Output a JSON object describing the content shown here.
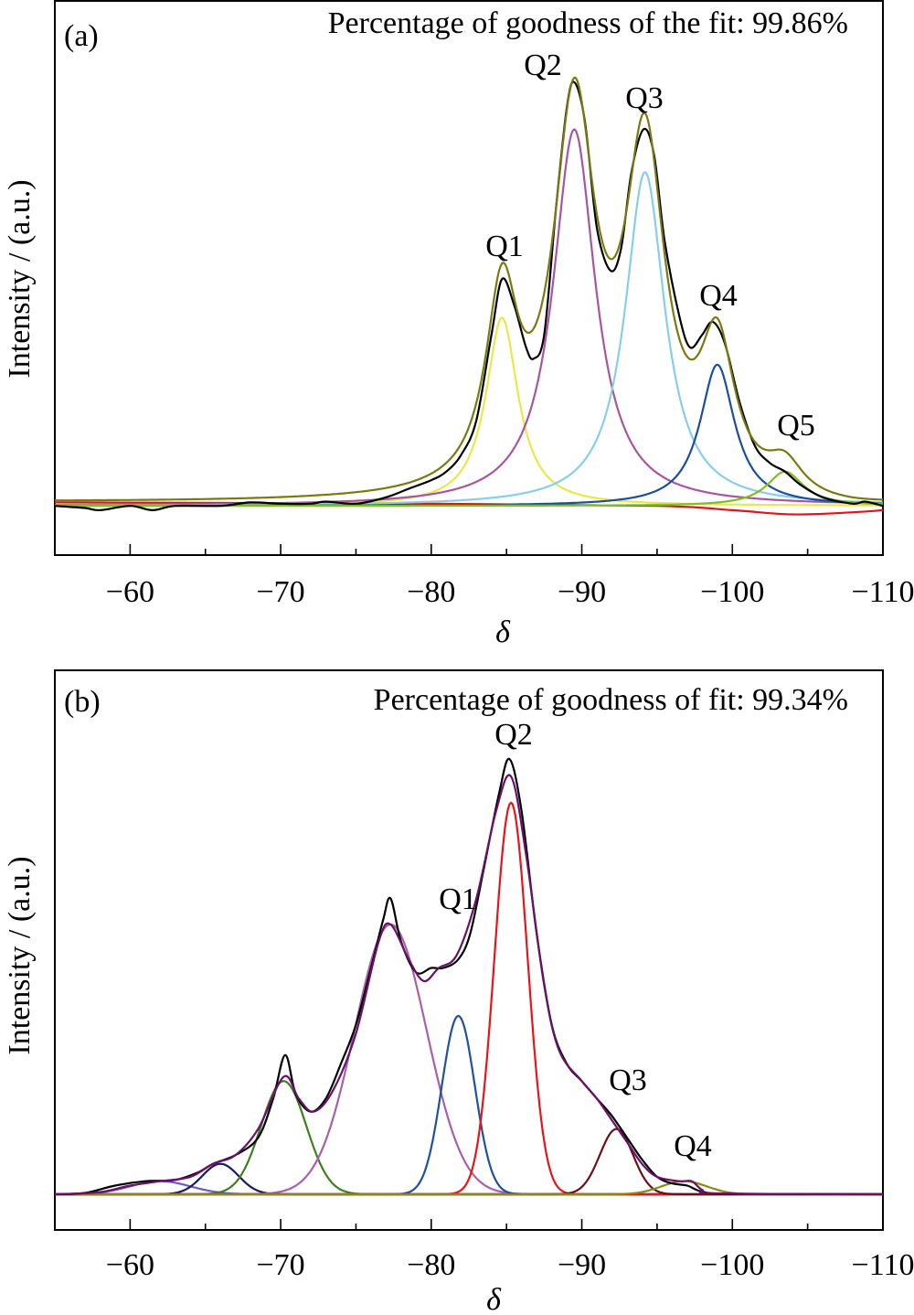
{
  "chart_data": [
    {
      "type": "line",
      "panel_label": "(a)",
      "title": "Percentage of goodness of the fit: 99.86%",
      "xlabel": "δ",
      "ylabel": "Intensity / (a.u.)",
      "xlim": [
        -55,
        -110
      ],
      "ylim": [
        -0.115,
        1.18
      ],
      "xticks": [
        -60,
        -70,
        -80,
        -90,
        -100,
        -110
      ],
      "xtick_labels": [
        "−60",
        "−70",
        "−80",
        "−90",
        "−100",
        "−110"
      ],
      "grid": false,
      "peak_shape": "lorentzian",
      "experimental": {
        "color": "#000000",
        "points": [
          [
            -55,
            0
          ],
          [
            -57,
            -0.005
          ],
          [
            -58,
            -0.01
          ],
          [
            -60,
            0
          ],
          [
            -61.5,
            -0.01
          ],
          [
            -63,
            0
          ],
          [
            -66,
            0
          ],
          [
            -68,
            0.008
          ],
          [
            -70,
            0.005
          ],
          [
            -72,
            0.005
          ],
          [
            -73,
            0.01
          ],
          [
            -75,
            0.005
          ],
          [
            -77,
            0.02
          ],
          [
            -78.5,
            0.04
          ],
          [
            -80,
            0.06
          ],
          [
            -81,
            0.08
          ],
          [
            -82,
            0.12
          ],
          [
            -83,
            0.2
          ],
          [
            -84,
            0.4
          ],
          [
            -84.7,
            0.53
          ],
          [
            -85.5,
            0.47
          ],
          [
            -86.3,
            0.37
          ],
          [
            -86.8,
            0.344
          ],
          [
            -87.5,
            0.4
          ],
          [
            -88.3,
            0.7
          ],
          [
            -89,
            0.93
          ],
          [
            -89.5,
            0.99
          ],
          [
            -90.2,
            0.9
          ],
          [
            -91,
            0.65
          ],
          [
            -91.9,
            0.55
          ],
          [
            -92.6,
            0.6
          ],
          [
            -93.3,
            0.78
          ],
          [
            -94.1,
            0.88
          ],
          [
            -94.8,
            0.82
          ],
          [
            -95.5,
            0.62
          ],
          [
            -96.5,
            0.44
          ],
          [
            -97.2,
            0.37
          ],
          [
            -98,
            0.4
          ],
          [
            -98.7,
            0.43
          ],
          [
            -99.5,
            0.38
          ],
          [
            -100.5,
            0.24
          ],
          [
            -101.5,
            0.14
          ],
          [
            -102.5,
            0.1
          ],
          [
            -103.5,
            0.08
          ],
          [
            -104.5,
            0.05
          ],
          [
            -106,
            0.02
          ],
          [
            -108,
            0.005
          ],
          [
            -108.8,
            0.01
          ],
          [
            -110,
            0
          ]
        ]
      },
      "fit_envelope_color": "#7a7a10",
      "baseline": {
        "color": "#e0141a",
        "points": [
          [
            -55,
            0.008
          ],
          [
            -80,
            0.005
          ],
          [
            -95,
            0
          ],
          [
            -100,
            -0.01
          ],
          [
            -104,
            -0.02
          ],
          [
            -108,
            -0.015
          ],
          [
            -110,
            -0.01
          ]
        ]
      },
      "components": [
        {
          "label": "Q1",
          "center": -84.7,
          "height": 0.44,
          "hwhm": 1.3,
          "color": "#e8e84a"
        },
        {
          "label": "Q2",
          "center": -89.5,
          "height": 0.88,
          "hwhm": 1.7,
          "color": "#a855a0"
        },
        {
          "label": "Q3",
          "center": -94.2,
          "height": 0.78,
          "hwhm": 1.6,
          "color": "#87ceeb"
        },
        {
          "label": "Q4",
          "center": -99.0,
          "height": 0.33,
          "hwhm": 1.4,
          "color": "#1a4f9f"
        },
        {
          "label": "Q5",
          "center": -103.5,
          "height": 0.08,
          "hwhm": 1.5,
          "color": "#7fbf1f"
        }
      ],
      "annotations": [
        "Q1",
        "Q2",
        "Q3",
        "Q4",
        "Q5"
      ]
    },
    {
      "type": "line",
      "panel_label": "(b)",
      "title": "Percentage of goodness of fit: 99.34%",
      "xlabel": "δ",
      "ylabel": "Intensity / (a.u.)",
      "xlim": [
        -55,
        -110
      ],
      "ylim": [
        -0.082,
        1.204
      ],
      "xticks": [
        -60,
        -70,
        -80,
        -90,
        -100,
        -110
      ],
      "xtick_labels": [
        "−60",
        "−70",
        "−80",
        "−90",
        "−100",
        "−110"
      ],
      "grid": false,
      "peak_shape": "gaussian",
      "experimental": {
        "color": "#000000",
        "points": [
          [
            -55,
            0
          ],
          [
            -57,
            0.003
          ],
          [
            -59,
            0.02
          ],
          [
            -61,
            0.03
          ],
          [
            -63,
            0.033
          ],
          [
            -64.5,
            0.05
          ],
          [
            -65.5,
            0.07
          ],
          [
            -67,
            0.09
          ],
          [
            -68.5,
            0.13
          ],
          [
            -69.5,
            0.22
          ],
          [
            -70.3,
            0.32
          ],
          [
            -71,
            0.23
          ],
          [
            -72,
            0.19
          ],
          [
            -73,
            0.22
          ],
          [
            -74,
            0.3
          ],
          [
            -75,
            0.39
          ],
          [
            -76,
            0.52
          ],
          [
            -76.8,
            0.63
          ],
          [
            -77.3,
            0.68
          ],
          [
            -78,
            0.58
          ],
          [
            -79,
            0.51
          ],
          [
            -80,
            0.52
          ],
          [
            -80.8,
            0.52
          ],
          [
            -81.8,
            0.54
          ],
          [
            -82.6,
            0.6
          ],
          [
            -83.5,
            0.75
          ],
          [
            -84.5,
            0.92
          ],
          [
            -85.2,
            1.0
          ],
          [
            -86,
            0.88
          ],
          [
            -87,
            0.6
          ],
          [
            -88,
            0.39
          ],
          [
            -89,
            0.3
          ],
          [
            -90,
            0.26
          ],
          [
            -91,
            0.22
          ],
          [
            -92,
            0.18
          ],
          [
            -93,
            0.13
          ],
          [
            -94,
            0.08
          ],
          [
            -95,
            0.04
          ],
          [
            -96,
            0.025
          ],
          [
            -97,
            0.02
          ],
          [
            -98,
            0.006
          ],
          [
            -100,
            0.001
          ],
          [
            -110,
            0
          ]
        ]
      },
      "fit_envelope": {
        "color": "#6a106a",
        "points": [
          [
            -55,
            0
          ],
          [
            -58,
            0.005
          ],
          [
            -60,
            0.02
          ],
          [
            -62,
            0.03
          ],
          [
            -64,
            0.04
          ],
          [
            -65.5,
            0.07
          ],
          [
            -67,
            0.09
          ],
          [
            -68.5,
            0.15
          ],
          [
            -70.2,
            0.27
          ],
          [
            -71.2,
            0.22
          ],
          [
            -72.2,
            0.19
          ],
          [
            -73.5,
            0.24
          ],
          [
            -75,
            0.37
          ],
          [
            -76.5,
            0.58
          ],
          [
            -77.3,
            0.62
          ],
          [
            -78.5,
            0.54
          ],
          [
            -79.5,
            0.49
          ],
          [
            -80.5,
            0.52
          ],
          [
            -81.7,
            0.55
          ],
          [
            -83,
            0.68
          ],
          [
            -84.3,
            0.88
          ],
          [
            -85.3,
            0.96
          ],
          [
            -86.3,
            0.78
          ],
          [
            -87.5,
            0.48
          ],
          [
            -88.5,
            0.33
          ],
          [
            -90,
            0.26
          ],
          [
            -91,
            0.22
          ],
          [
            -92,
            0.17
          ],
          [
            -93,
            0.12
          ],
          [
            -94,
            0.07
          ],
          [
            -95,
            0.04
          ],
          [
            -96.5,
            0.03
          ],
          [
            -97.3,
            0.03
          ],
          [
            -98,
            0.01
          ],
          [
            -99,
            0.002
          ],
          [
            -110,
            0
          ]
        ]
      },
      "components": [
        {
          "center": -62.0,
          "height": 0.03,
          "sigma": 2.0,
          "color": "#6a5acd"
        },
        {
          "center": -66.0,
          "height": 0.07,
          "sigma": 1.2,
          "color": "#1a1a5e"
        },
        {
          "center": -70.2,
          "height": 0.26,
          "sigma": 1.5,
          "color": "#3f7f1f"
        },
        {
          "label": "Q1",
          "center": -77.3,
          "height": 0.62,
          "sigma": 2.4,
          "color": "#a860a8"
        },
        {
          "center": -81.8,
          "height": 0.41,
          "sigma": 1.1,
          "color": "#2050a0"
        },
        {
          "label": "Q2",
          "center": -85.3,
          "height": 0.9,
          "sigma": 1.1,
          "color": "#e8141a"
        },
        {
          "label": "Q3",
          "center": -92.3,
          "height": 0.15,
          "sigma": 1.1,
          "color": "#6b0f1a"
        },
        {
          "label": "Q4",
          "center": -96.8,
          "height": 0.03,
          "sigma": 1.5,
          "color": "#8a8a10"
        }
      ],
      "annotations": [
        "Q1",
        "Q2",
        "Q3",
        "Q4"
      ]
    }
  ]
}
